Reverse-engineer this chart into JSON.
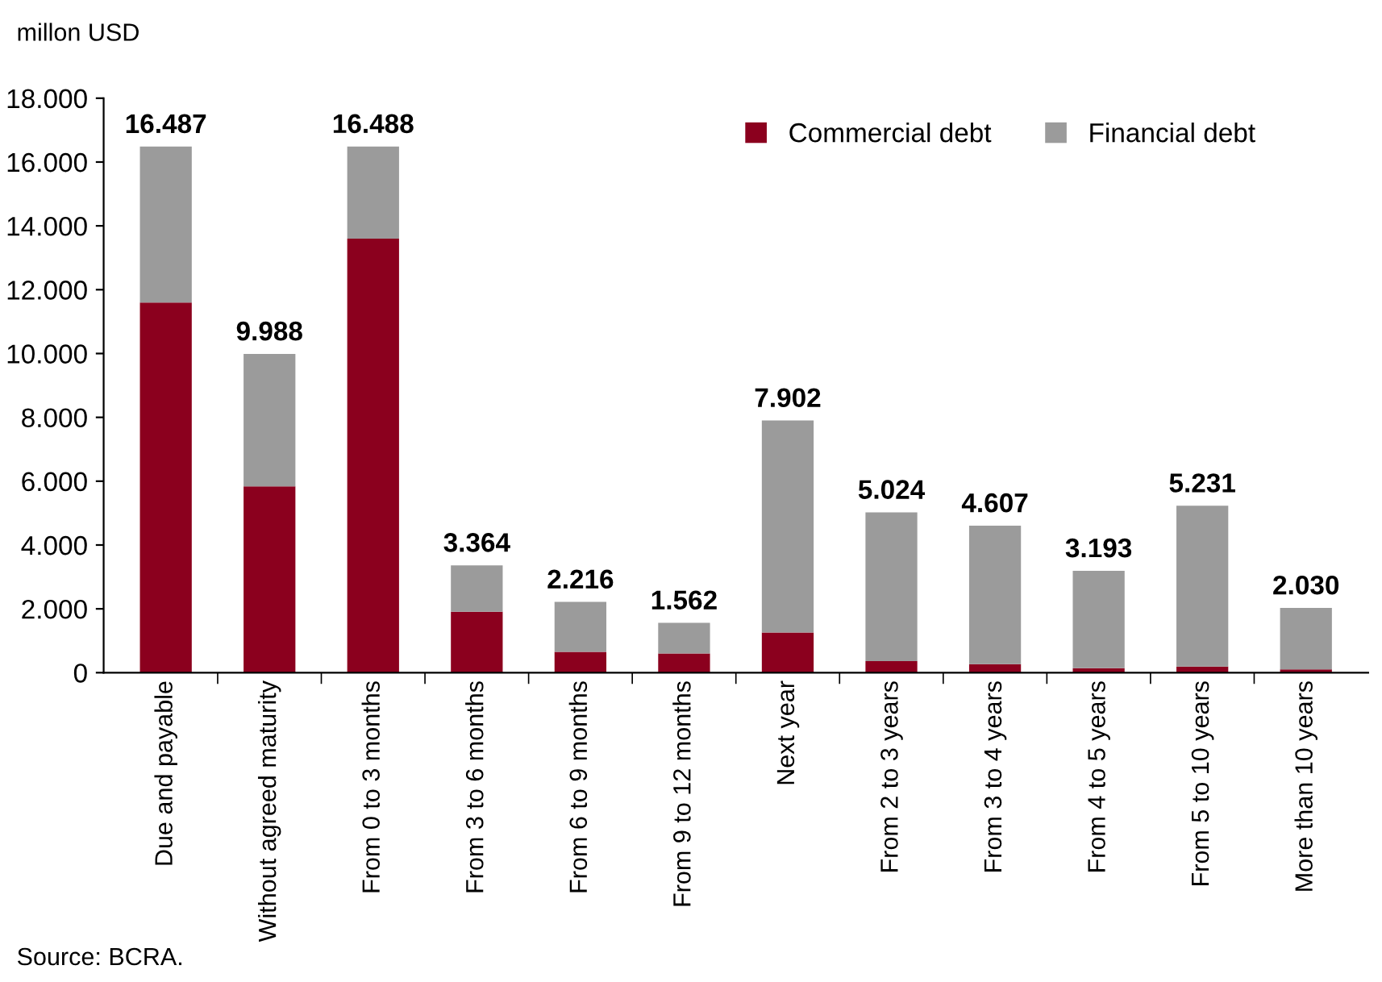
{
  "chart_data": {
    "type": "bar",
    "stacked": true,
    "ylabel": "millon USD",
    "annotations": [
      "Source: BCRA."
    ],
    "categories": [
      "Due and payable",
      "Without agreed maturity",
      "From 0 to 3 months",
      "From 3 to 6 months",
      "From 6 to 9 months",
      "From 9 to 12 months",
      "Next year",
      "From 2 to 3 years",
      "From 3 to 4 years",
      "From 4 to 5 years",
      "From 5 to 10 years",
      "More than 10 years"
    ],
    "series": [
      {
        "name": "Commercial debt",
        "color": "#8b001e",
        "values": [
          11600,
          5840,
          13600,
          1910,
          650,
          600,
          1260,
          360,
          270,
          140,
          190,
          100
        ]
      },
      {
        "name": "Financial debt",
        "color": "#9b9b9b",
        "values": [
          4887,
          4148,
          2888,
          1454,
          1566,
          962,
          6642,
          4664,
          4337,
          3053,
          5041,
          1930
        ]
      }
    ],
    "totals": [
      "16.487",
      "9.988",
      "16.488",
      "3.364",
      "2.216",
      "1.562",
      "7.902",
      "5.024",
      "4.607",
      "3.193",
      "5.231",
      "2.030"
    ],
    "ylim": [
      0,
      18000
    ],
    "yticks": [
      0,
      {
        "value": 2000,
        "label": "2.000"
      },
      {
        "value": 4000,
        "label": "4.000"
      },
      {
        "value": 6000,
        "label": "6.000"
      },
      {
        "value": 8000,
        "label": "8.000"
      },
      {
        "value": 10000,
        "label": "10.000"
      },
      {
        "value": 12000,
        "label": "12.000"
      },
      {
        "value": 14000,
        "label": "14.000"
      },
      {
        "value": 16000,
        "label": "16.000"
      },
      {
        "value": 18000,
        "label": "18.000"
      }
    ],
    "legend": "top right",
    "grid": false
  }
}
